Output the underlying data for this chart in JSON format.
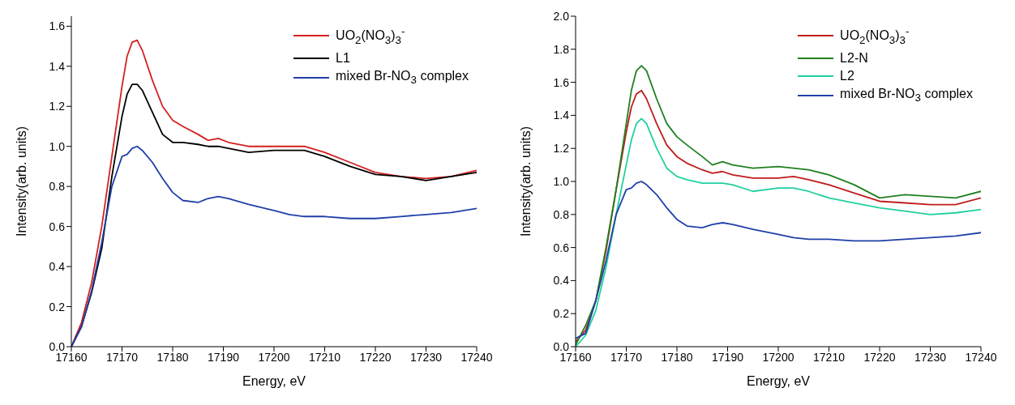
{
  "chart_data": [
    {
      "type": "line",
      "xlabel": "Energy, eV",
      "ylabel": "Intensity(arb. units)",
      "legend": "top right",
      "marker": "none",
      "line_style": "solid",
      "grid": false,
      "x": [
        17160,
        17162,
        17164,
        17166,
        17168,
        17170,
        17171,
        17172,
        17173,
        17174,
        17176,
        17178,
        17180,
        17182,
        17185,
        17187,
        17189,
        17191,
        17195,
        17200,
        17203,
        17206,
        17210,
        17215,
        17220,
        17225,
        17230,
        17235,
        17240
      ],
      "xlim": [
        17160,
        17240
      ],
      "xticks": [
        17160,
        17170,
        17180,
        17190,
        17200,
        17210,
        17220,
        17230,
        17240
      ],
      "ylim": [
        0,
        1.65
      ],
      "yticks": [
        {
          "value": 0,
          "label": "0.0"
        },
        {
          "value": 0.2,
          "label": "0.2"
        },
        {
          "value": 0.4,
          "label": "0.4"
        },
        {
          "value": 0.6,
          "label": "0.6"
        },
        {
          "value": 0.8,
          "label": "0.8"
        },
        {
          "value": 1,
          "label": "1.0"
        },
        {
          "value": 1.2,
          "label": "1.2"
        },
        {
          "value": 1.4,
          "label": "1.4"
        },
        {
          "value": 1.6,
          "label": "1.6"
        }
      ],
      "series": [
        {
          "name": "UO$_{2}$(NO$_{3}$)$_{3}$$^{-}$",
          "color": "#d42020",
          "values": [
            0,
            0.12,
            0.32,
            0.6,
            0.95,
            1.3,
            1.45,
            1.52,
            1.53,
            1.48,
            1.33,
            1.2,
            1.13,
            1.1,
            1.06,
            1.03,
            1.04,
            1.02,
            1.0,
            1.0,
            1.0,
            1.0,
            0.97,
            0.92,
            0.87,
            0.85,
            0.84,
            0.85,
            0.88
          ]
        },
        {
          "name": "L1",
          "color": "#000000",
          "values": [
            0,
            0.1,
            0.27,
            0.49,
            0.85,
            1.15,
            1.26,
            1.31,
            1.31,
            1.28,
            1.17,
            1.06,
            1.02,
            1.02,
            1.01,
            1.0,
            1.0,
            0.99,
            0.97,
            0.98,
            0.98,
            0.98,
            0.95,
            0.9,
            0.86,
            0.85,
            0.83,
            0.85,
            0.87
          ]
        },
        {
          "name": "mixed Br-NO$_{3}$ complex",
          "color": "#2040a8",
          "values": [
            0,
            0.1,
            0.28,
            0.52,
            0.8,
            0.95,
            0.96,
            0.99,
            1.0,
            0.98,
            0.92,
            0.84,
            0.77,
            0.73,
            0.72,
            0.74,
            0.75,
            0.74,
            0.71,
            0.68,
            0.66,
            0.65,
            0.65,
            0.64,
            0.64,
            0.65,
            0.66,
            0.67,
            0.69
          ]
        }
      ]
    },
    {
      "type": "line",
      "xlabel": "Energy, eV",
      "ylabel": "Intensity(arb. units)",
      "legend": "top right",
      "marker": "none",
      "line_style": "solid",
      "grid": false,
      "x": [
        17160,
        17162,
        17164,
        17166,
        17168,
        17170,
        17171,
        17172,
        17173,
        17174,
        17176,
        17178,
        17180,
        17182,
        17185,
        17187,
        17189,
        17191,
        17195,
        17200,
        17203,
        17206,
        17210,
        17215,
        17220,
        17225,
        17230,
        17235,
        17240
      ],
      "xlim": [
        17160,
        17240
      ],
      "xticks": [
        17160,
        17170,
        17180,
        17190,
        17200,
        17210,
        17220,
        17230,
        17240
      ],
      "ylim": [
        0,
        2
      ],
      "yticks": [
        {
          "value": 0,
          "label": "0.0"
        },
        {
          "value": 0.2,
          "label": "0.2"
        },
        {
          "value": 0.4,
          "label": "0.4"
        },
        {
          "value": 0.6,
          "label": "0.6"
        },
        {
          "value": 0.8,
          "label": "0.8"
        },
        {
          "value": 1,
          "label": "1.0"
        },
        {
          "value": 1.2,
          "label": "1.2"
        },
        {
          "value": 1.4,
          "label": "1.4"
        },
        {
          "value": 1.6,
          "label": "1.6"
        },
        {
          "value": 1.8,
          "label": "1.8"
        },
        {
          "value": 2,
          "label": "2.0"
        }
      ],
      "series": [
        {
          "name": "UO$_{2}$(NO$_{3}$)$_{3}$$^{-}$",
          "color": "#c01c1c",
          "values": [
            0.03,
            0.1,
            0.28,
            0.58,
            0.95,
            1.3,
            1.45,
            1.53,
            1.55,
            1.5,
            1.35,
            1.22,
            1.15,
            1.11,
            1.07,
            1.05,
            1.06,
            1.04,
            1.02,
            1.02,
            1.03,
            1.01,
            0.98,
            0.93,
            0.88,
            0.87,
            0.86,
            0.86,
            0.9
          ]
        },
        {
          "name": "L2-N",
          "color": "#208020",
          "values": [
            0.01,
            0.13,
            0.28,
            0.6,
            0.95,
            1.35,
            1.55,
            1.67,
            1.7,
            1.67,
            1.5,
            1.35,
            1.27,
            1.22,
            1.15,
            1.1,
            1.12,
            1.1,
            1.08,
            1.09,
            1.08,
            1.07,
            1.04,
            0.98,
            0.9,
            0.92,
            0.91,
            0.9,
            0.94
          ]
        },
        {
          "name": "L2",
          "color": "#20d0a0",
          "values": [
            0,
            0.07,
            0.22,
            0.48,
            0.8,
            1.1,
            1.25,
            1.35,
            1.38,
            1.35,
            1.2,
            1.08,
            1.03,
            1.01,
            0.99,
            0.99,
            0.99,
            0.98,
            0.94,
            0.96,
            0.96,
            0.94,
            0.9,
            0.87,
            0.84,
            0.82,
            0.8,
            0.81,
            0.83
          ]
        },
        {
          "name": "mixed Br-NO$_{3}$ complex",
          "color": "#2040a8",
          "values": [
            0.05,
            0.08,
            0.28,
            0.52,
            0.8,
            0.95,
            0.96,
            0.99,
            1.0,
            0.98,
            0.92,
            0.84,
            0.77,
            0.73,
            0.72,
            0.74,
            0.75,
            0.74,
            0.71,
            0.68,
            0.66,
            0.65,
            0.65,
            0.64,
            0.64,
            0.65,
            0.66,
            0.67,
            0.69
          ]
        }
      ]
    }
  ]
}
